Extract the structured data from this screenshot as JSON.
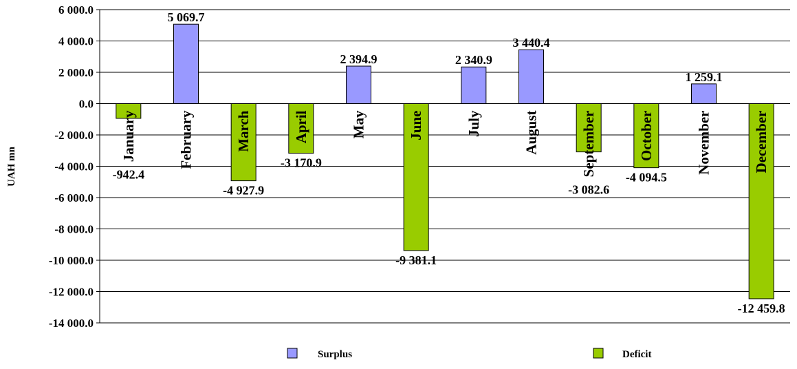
{
  "chart_data": {
    "type": "bar",
    "ylabel": "UAH mn",
    "ylim": [
      -14000,
      6000
    ],
    "y_ticks": [
      6000,
      4000,
      2000,
      0,
      -2000,
      -4000,
      -6000,
      -8000,
      -10000,
      -12000,
      -14000
    ],
    "y_tick_labels": [
      "6 000.0",
      "4 000.0",
      "2 000.0",
      "0.0",
      "-2 000.0",
      "-4 000.0",
      "-6 000.0",
      "-8 000.0",
      "-10 000.0",
      "-12 000.0",
      "-14 000.0"
    ],
    "grid": true,
    "categories": [
      "January",
      "February",
      "March",
      "April",
      "May",
      "June",
      "July",
      "August",
      "September",
      "October",
      "November",
      "December"
    ],
    "values": [
      -942.4,
      5069.7,
      -4927.9,
      -3170.9,
      2394.9,
      -9381.1,
      2340.9,
      3440.4,
      -3082.6,
      -4094.5,
      1259.1,
      -12459.8
    ],
    "data_labels": [
      "-942.4",
      "5 069.7",
      "-4 927.9",
      "-3 170.9",
      "2 394.9",
      "-9 381.1",
      "2 340.9",
      "3 440.4",
      "-3 082.6",
      "-4 094.5",
      "1 259.1",
      "-12 459.8"
    ],
    "series": [
      {
        "name": "Surplus",
        "color": "#9999ff"
      },
      {
        "name": "Deficit",
        "color": "#99cc00"
      }
    ],
    "legend_position": "bottom"
  }
}
